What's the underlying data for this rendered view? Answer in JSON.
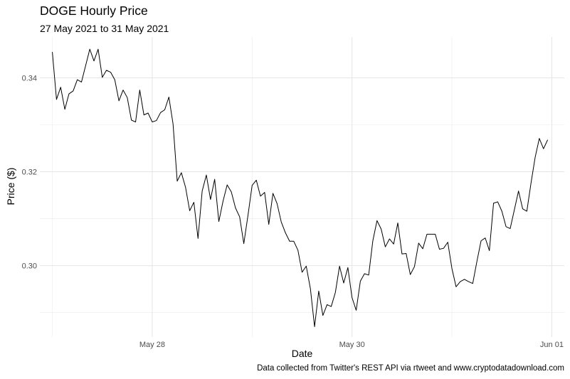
{
  "chart_data": {
    "type": "line",
    "title": "DOGE Hourly Price",
    "subtitle": "27 May 2021 to 31 May 2021",
    "caption": "Data collected from Twitter's REST API via rtweet and www.cryptodatadownload.com",
    "xlabel": "Date",
    "ylabel": "Price ($)",
    "x_ticks": [
      {
        "date": "2021-05-28",
        "label": "May 28"
      },
      {
        "date": "2021-05-30",
        "label": "May 30"
      },
      {
        "date": "2021-06-01",
        "label": "Jun 01"
      }
    ],
    "y_ticks": [
      0.3,
      0.32,
      0.34
    ],
    "y_tick_labels": [
      "0.30",
      "0.32",
      "0.34"
    ],
    "xlim": [
      "2021-05-26T21:00",
      "2021-06-01T03:00"
    ],
    "ylim": [
      0.2848,
      0.3487
    ],
    "grid": true,
    "line_color": "#000000",
    "series": [
      {
        "x_start": "2021-05-27T00:00",
        "x_step_hours": 1,
        "values": [
          0.3455,
          0.3354,
          0.338,
          0.3333,
          0.3366,
          0.3372,
          0.3396,
          0.3391,
          0.3426,
          0.3461,
          0.3436,
          0.3461,
          0.3401,
          0.3416,
          0.3412,
          0.3396,
          0.3351,
          0.3374,
          0.3358,
          0.331,
          0.3306,
          0.3374,
          0.3321,
          0.3325,
          0.3306,
          0.3309,
          0.3326,
          0.3332,
          0.3359,
          0.3302,
          0.318,
          0.3198,
          0.3167,
          0.3117,
          0.3135,
          0.3058,
          0.3159,
          0.3193,
          0.3141,
          0.3184,
          0.3094,
          0.3137,
          0.3172,
          0.3157,
          0.3123,
          0.3104,
          0.3047,
          0.3107,
          0.3171,
          0.3182,
          0.3148,
          0.3156,
          0.3088,
          0.3154,
          0.3132,
          0.3093,
          0.307,
          0.3052,
          0.3052,
          0.3033,
          0.2986,
          0.2999,
          0.2951,
          0.287,
          0.2946,
          0.2894,
          0.2917,
          0.2913,
          0.2943,
          0.2999,
          0.2963,
          0.2996,
          0.2932,
          0.2905,
          0.2967,
          0.2983,
          0.298,
          0.3053,
          0.3096,
          0.3078,
          0.304,
          0.3057,
          0.3046,
          0.3091,
          0.3025,
          0.3026,
          0.2981,
          0.2998,
          0.3048,
          0.3036,
          0.3067,
          0.3067,
          0.3067,
          0.3035,
          0.3037,
          0.305,
          0.2994,
          0.2955,
          0.2966,
          0.2971,
          0.2966,
          0.2962,
          0.3009,
          0.3053,
          0.3059,
          0.3032,
          0.3133,
          0.3136,
          0.3116,
          0.3083,
          0.3079,
          0.3119,
          0.3159,
          0.3121,
          0.3116,
          0.3176,
          0.3231,
          0.3271,
          0.3249,
          0.3268
        ]
      }
    ]
  }
}
